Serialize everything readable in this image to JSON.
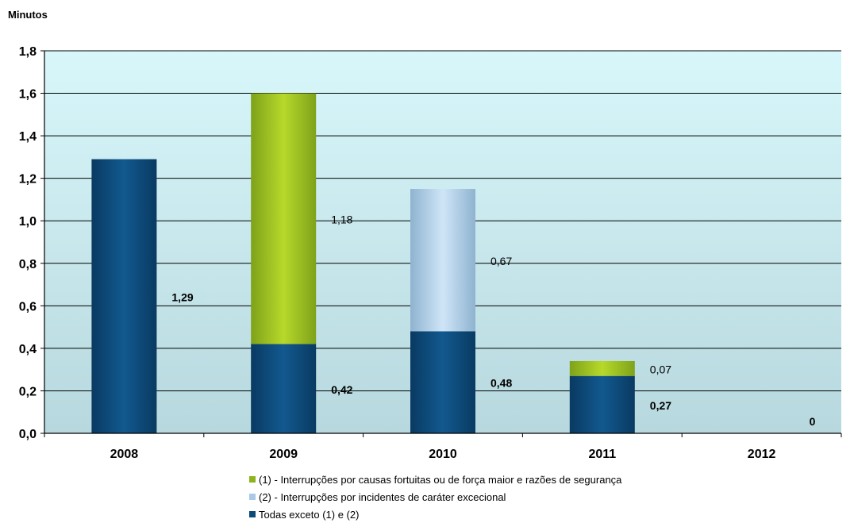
{
  "chart_data": {
    "type": "bar",
    "stacked": true,
    "ylabel": "Minutos",
    "categories": [
      "2008",
      "2009",
      "2010",
      "2011",
      "2012"
    ],
    "ylim": [
      0,
      1.8
    ],
    "yticks": [
      "0,0",
      "0,2",
      "0,4",
      "0,6",
      "0,8",
      "1,0",
      "1,2",
      "1,4",
      "1,6",
      "1,8"
    ],
    "grid": true,
    "legend_position": "bottom",
    "series": [
      {
        "name": "Todas exceto (1) e (2)",
        "values": [
          1.29,
          0.42,
          0.48,
          0.27,
          0
        ],
        "labels": [
          "1,29",
          "0,42",
          "0,48",
          "0,27",
          "0"
        ],
        "color": "#0c4a78"
      },
      {
        "name": "(1) - Interrupções por causas fortuitas ou de força maior e razões de segurança",
        "values": [
          0,
          1.18,
          0,
          0.07,
          0
        ],
        "labels": [
          "",
          "1,18",
          "",
          "0,07",
          ""
        ],
        "color": "#8db31e"
      },
      {
        "name": "(2) - Interrupções por incidentes de caráter excecional",
        "values": [
          0,
          0,
          0.67,
          0,
          0
        ],
        "labels": [
          "",
          "",
          "0,67",
          "",
          ""
        ],
        "color": "#a9c9e6"
      }
    ],
    "legend_order": [
      1,
      2,
      0
    ]
  }
}
